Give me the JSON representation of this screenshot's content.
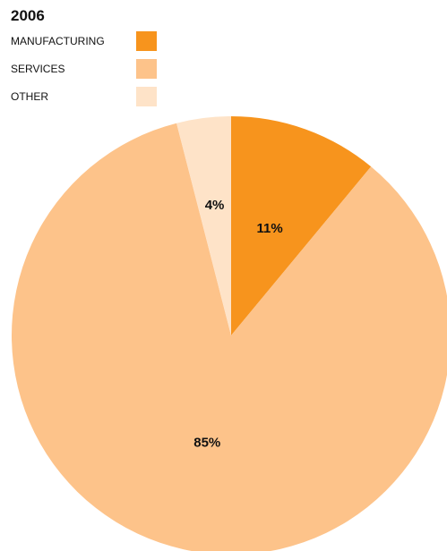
{
  "chart_data": {
    "type": "pie",
    "title": "2006",
    "categories": [
      "MANUFACTURING",
      "SERVICES",
      "OTHER"
    ],
    "values": [
      11,
      85,
      4
    ],
    "labels": [
      "11%",
      "85%",
      "4%"
    ],
    "colors": [
      "#f7941d",
      "#fdc38a",
      "#fee3c8"
    ],
    "legend_placement": "top-left"
  }
}
